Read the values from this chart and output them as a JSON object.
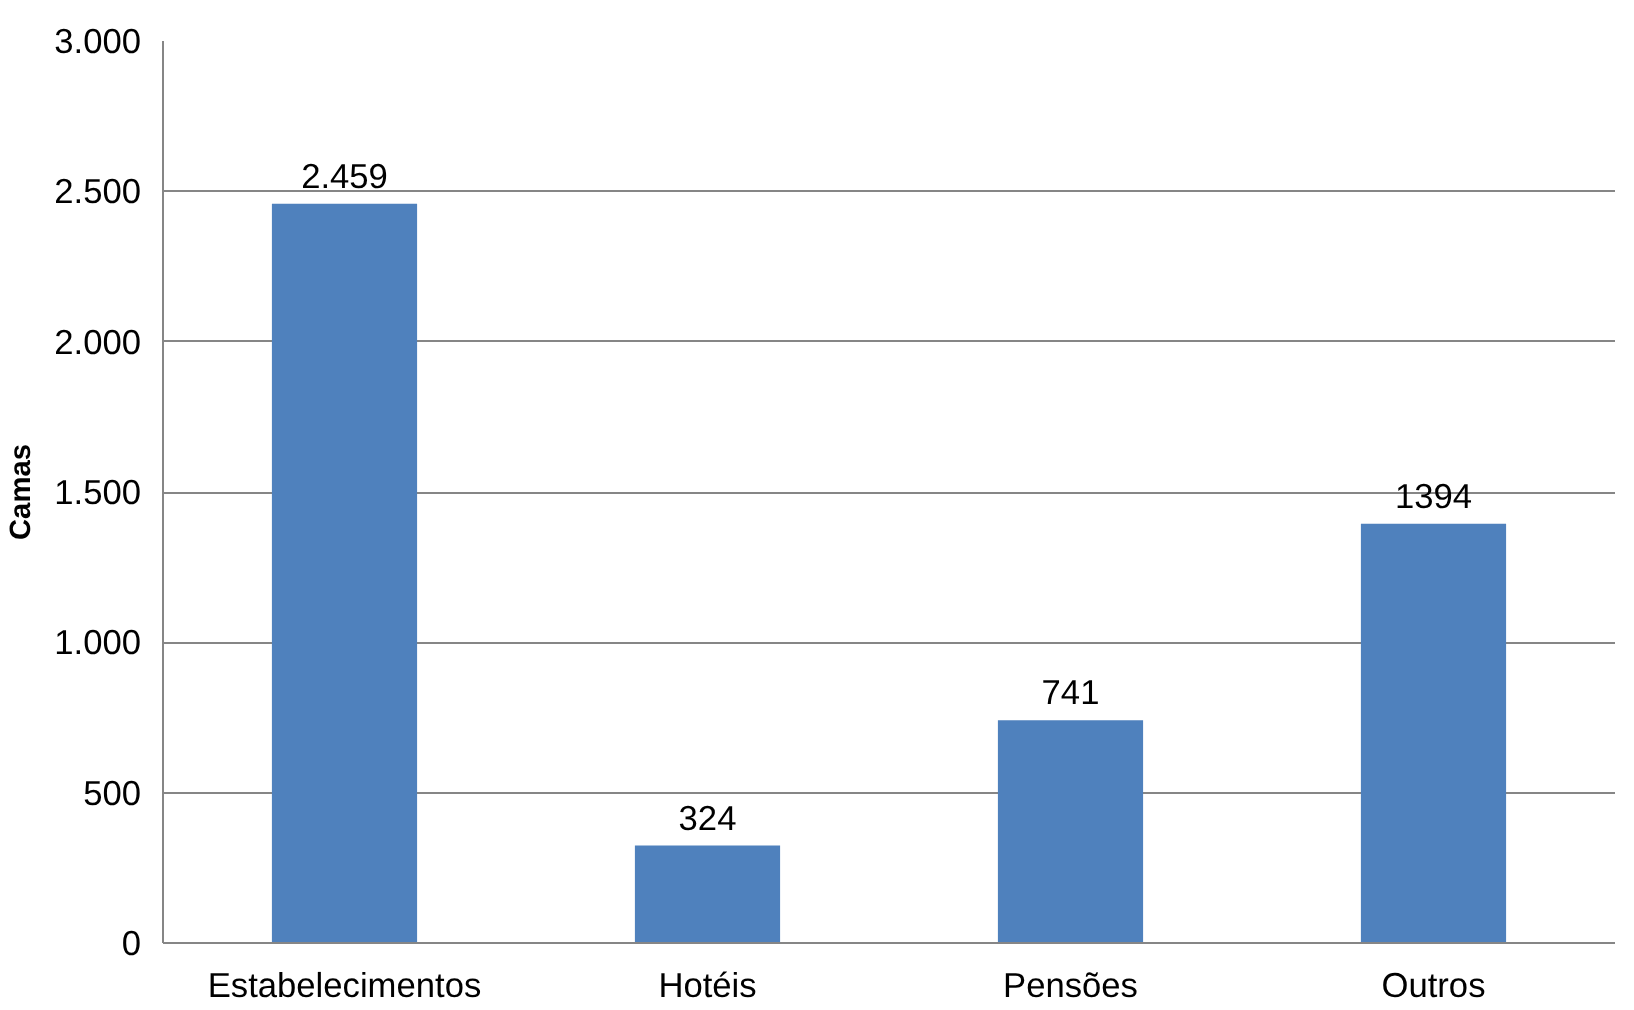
{
  "chart_data": {
    "type": "bar",
    "ylabel": "Camas",
    "categories": [
      "Estabelecimentos",
      "Hotéis",
      "Pensões",
      "Outros"
    ],
    "values": [
      2459,
      324,
      741,
      1394
    ],
    "value_labels": [
      "2.459",
      "324",
      "741",
      "1394"
    ],
    "color": "#4f81bd",
    "ylim": [
      0,
      3000
    ],
    "yticks": [
      {
        "value": 0,
        "label": "0"
      },
      {
        "value": 500,
        "label": "500"
      },
      {
        "value": 1000,
        "label": "1.000"
      },
      {
        "value": 1500,
        "label": "1.500"
      },
      {
        "value": 2000,
        "label": "2.000"
      },
      {
        "value": 2500,
        "label": "2.500"
      },
      {
        "value": 3000,
        "label": "3.000"
      }
    ],
    "grid": "y"
  }
}
